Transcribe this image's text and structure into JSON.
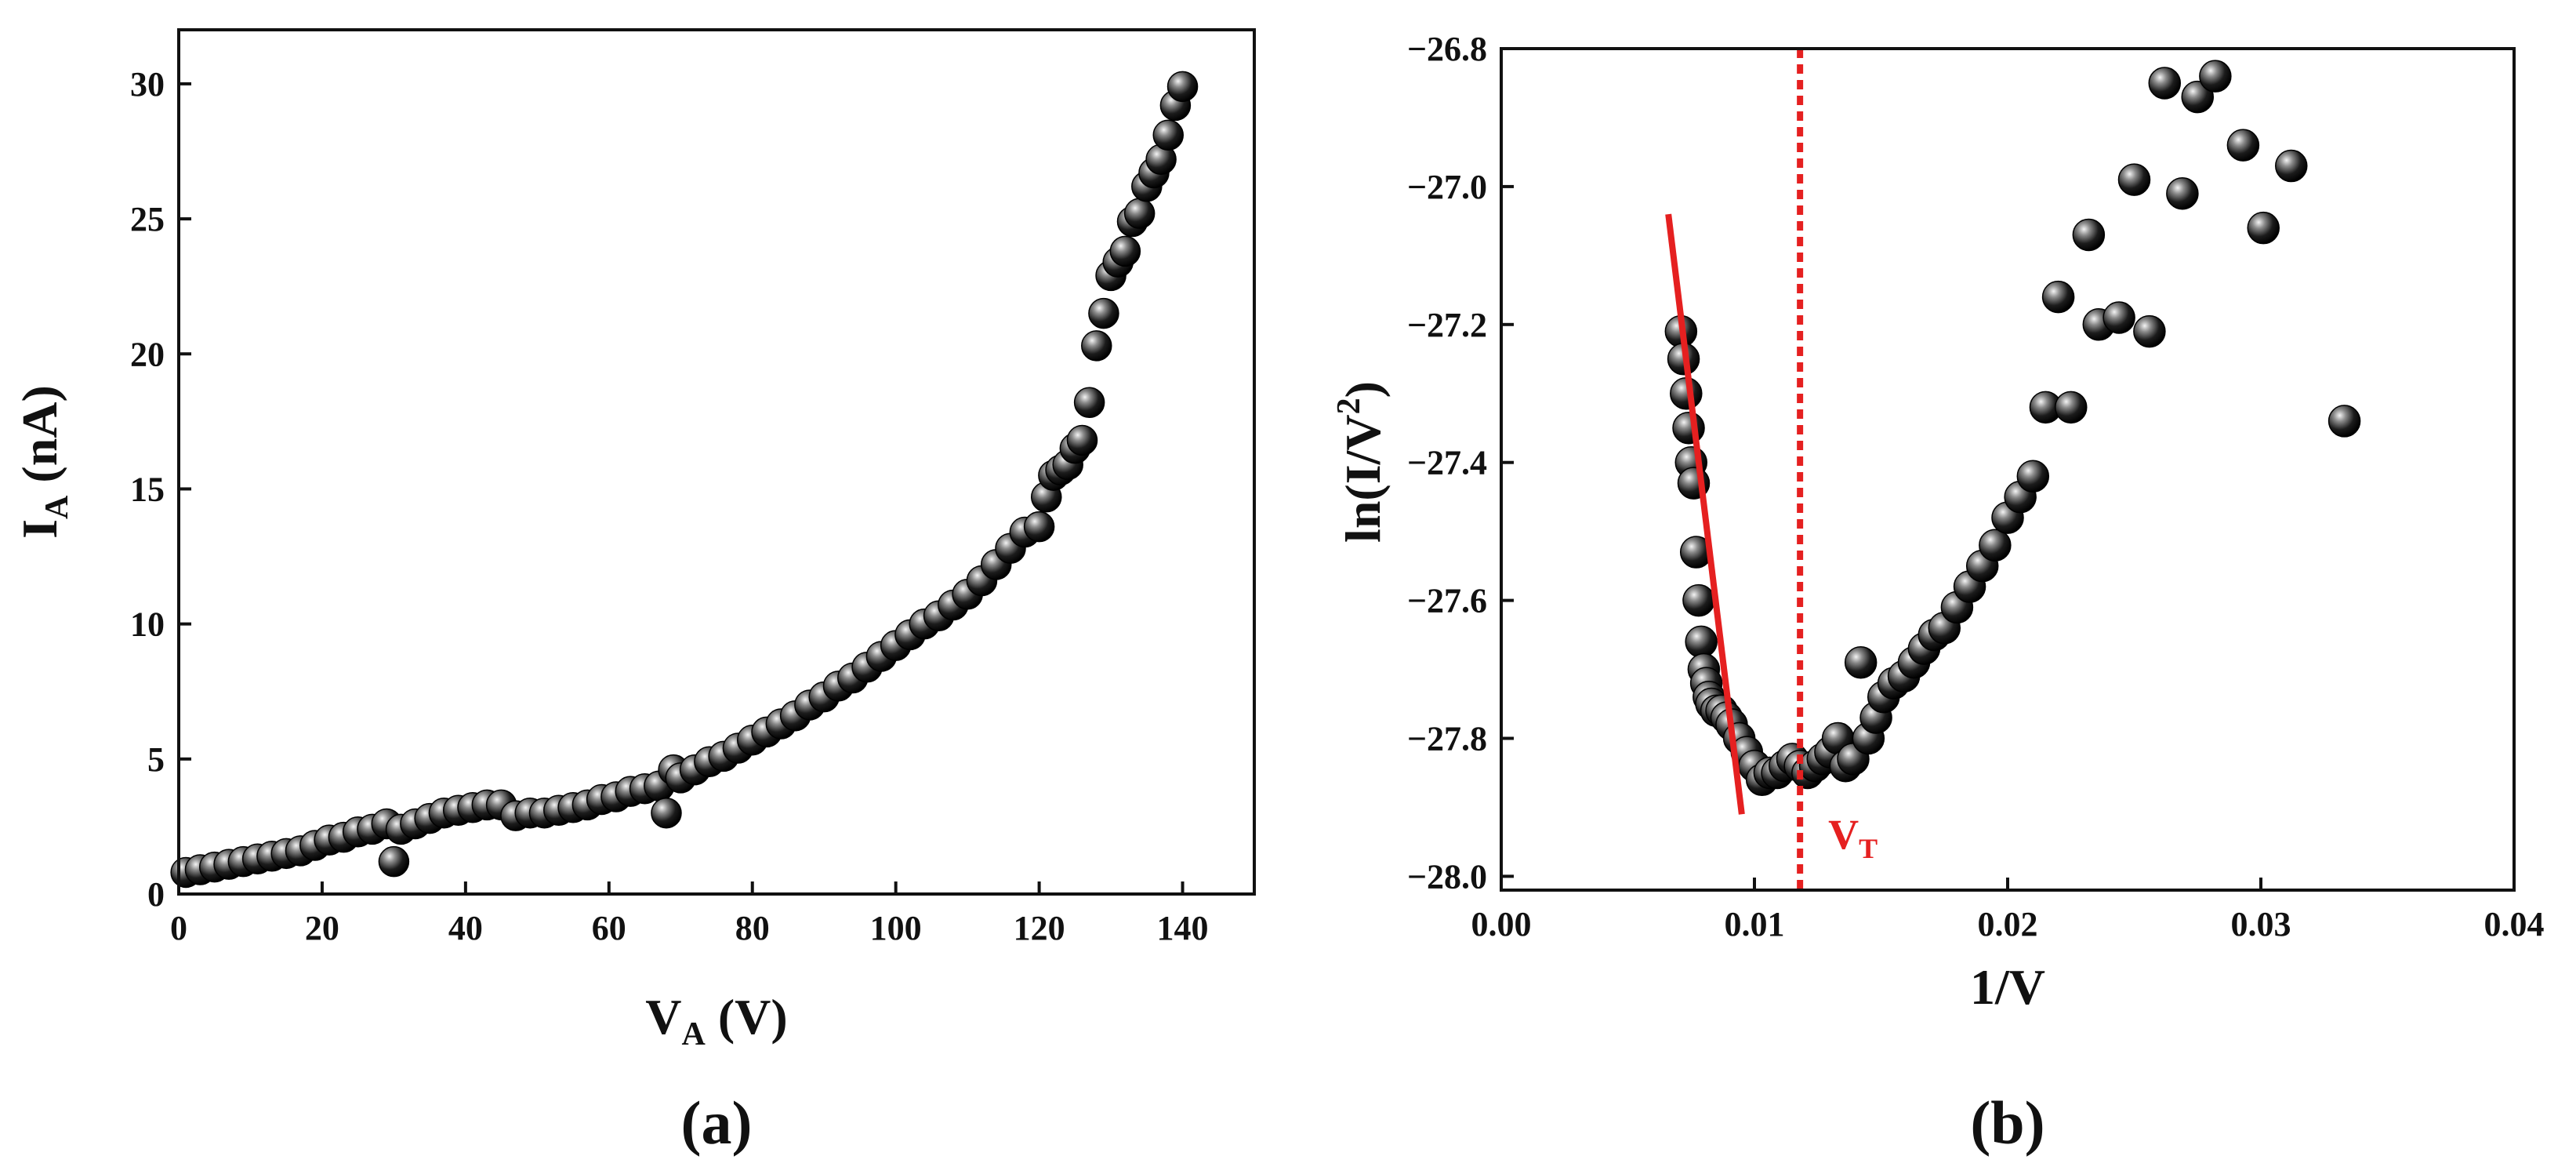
{
  "chart_data": [
    {
      "panel_label": "(a)",
      "type": "scatter",
      "xlabel_main": "V",
      "xlabel_sub": "A",
      "xlabel_unit": "(V)",
      "ylabel_main": "I",
      "ylabel_sub": "A",
      "ylabel_unit": "(nA)",
      "xlim": [
        0,
        150
      ],
      "ylim": [
        0,
        32
      ],
      "xticks": [
        0,
        20,
        40,
        60,
        80,
        100,
        120,
        140
      ],
      "yticks": [
        0,
        5,
        10,
        15,
        20,
        25,
        30
      ],
      "xtick_labels": [
        "0",
        "20",
        "40",
        "60",
        "80",
        "100",
        "120",
        "140"
      ],
      "ytick_labels": [
        "0",
        "5",
        "10",
        "15",
        "20",
        "25",
        "30"
      ],
      "series": [
        {
          "name": "I_A vs V_A",
          "x": [
            1,
            3,
            5,
            7,
            9,
            11,
            13,
            15,
            17,
            19,
            21,
            23,
            25,
            27,
            29,
            30,
            31,
            33,
            35,
            37,
            39,
            41,
            43,
            45,
            47,
            49,
            51,
            53,
            55,
            57,
            59,
            61,
            63,
            65,
            67,
            68,
            69,
            70,
            72,
            74,
            76,
            78,
            80,
            82,
            84,
            86,
            88,
            90,
            92,
            94,
            96,
            98,
            100,
            102,
            104,
            106,
            108,
            110,
            112,
            114,
            116,
            118,
            120,
            121,
            122,
            123,
            124,
            125,
            126,
            127,
            128,
            129,
            130,
            131,
            132,
            133,
            134,
            135,
            136,
            137,
            138,
            139,
            140
          ],
          "y": [
            0.8,
            0.9,
            1.0,
            1.1,
            1.2,
            1.3,
            1.4,
            1.5,
            1.6,
            1.8,
            2.0,
            2.1,
            2.3,
            2.4,
            2.6,
            1.2,
            2.4,
            2.6,
            2.8,
            3.0,
            3.1,
            3.2,
            3.3,
            3.3,
            2.9,
            3.0,
            3.0,
            3.1,
            3.2,
            3.3,
            3.5,
            3.6,
            3.8,
            3.9,
            4.0,
            3.0,
            4.6,
            4.3,
            4.6,
            4.9,
            5.1,
            5.4,
            5.7,
            6.0,
            6.3,
            6.6,
            7.0,
            7.3,
            7.7,
            8.0,
            8.4,
            8.8,
            9.2,
            9.6,
            10.0,
            10.3,
            10.7,
            11.1,
            11.6,
            12.2,
            12.8,
            13.4,
            13.6,
            14.7,
            15.5,
            15.7,
            15.9,
            16.5,
            16.8,
            18.2,
            20.3,
            21.5,
            22.9,
            23.4,
            23.8,
            24.9,
            25.2,
            26.2,
            26.7,
            27.2,
            28.1,
            29.2,
            29.9
          ]
        }
      ]
    },
    {
      "panel_label": "(b)",
      "type": "scatter",
      "xlabel": "1/V",
      "ylabel_main": "ln(I/V",
      "ylabel_sup": "2",
      "ylabel_end": ")",
      "xlim": [
        0.0,
        0.04
      ],
      "ylim": [
        -28.02,
        -26.8
      ],
      "xticks": [
        0.0,
        0.01,
        0.02,
        0.03,
        0.04
      ],
      "yticks": [
        -28.0,
        -27.8,
        -27.6,
        -27.4,
        -27.2,
        -27.0,
        -26.8
      ],
      "xtick_labels": [
        "0.00",
        "0.01",
        "0.02",
        "0.03",
        "0.04"
      ],
      "ytick_labels": [
        "−28.0",
        "−27.8",
        "−27.6",
        "−27.4",
        "−27.2",
        "−27.0",
        "−26.8"
      ],
      "series": [
        {
          "name": "ln(I/V^2) vs 1/V",
          "x": [
            0.0071,
            0.0072,
            0.0073,
            0.0074,
            0.0075,
            0.0076,
            0.0077,
            0.0078,
            0.0079,
            0.008,
            0.0081,
            0.0082,
            0.0083,
            0.0085,
            0.0087,
            0.0089,
            0.0091,
            0.0094,
            0.0097,
            0.01,
            0.0103,
            0.0106,
            0.0109,
            0.0112,
            0.0115,
            0.0118,
            0.0121,
            0.0124,
            0.0127,
            0.013,
            0.0133,
            0.0136,
            0.0139,
            0.0142,
            0.0145,
            0.0148,
            0.0151,
            0.0155,
            0.0159,
            0.0163,
            0.0167,
            0.0171,
            0.0175,
            0.018,
            0.0185,
            0.019,
            0.0195,
            0.02,
            0.0205,
            0.021,
            0.0215,
            0.022,
            0.0225,
            0.0232,
            0.0236,
            0.0244,
            0.025,
            0.0256,
            0.0262,
            0.0269,
            0.0275,
            0.0282,
            0.0293,
            0.0301,
            0.0312,
            0.0333
          ],
          "y": [
            -27.21,
            -27.25,
            -27.3,
            -27.35,
            -27.4,
            -27.43,
            -27.53,
            -27.6,
            -27.66,
            -27.7,
            -27.72,
            -27.74,
            -27.75,
            -27.76,
            -27.76,
            -27.77,
            -27.78,
            -27.8,
            -27.82,
            -27.84,
            -27.86,
            -27.85,
            -27.85,
            -27.84,
            -27.83,
            -27.84,
            -27.85,
            -27.84,
            -27.83,
            -27.82,
            -27.8,
            -27.84,
            -27.83,
            -27.69,
            -27.8,
            -27.77,
            -27.74,
            -27.72,
            -27.71,
            -27.69,
            -27.67,
            -27.65,
            -27.64,
            -27.61,
            -27.58,
            -27.55,
            -27.52,
            -27.48,
            -27.45,
            -27.42,
            -27.32,
            -27.16,
            -27.32,
            -27.07,
            -27.2,
            -27.19,
            -26.99,
            -27.21,
            -26.85,
            -27.01,
            -26.87,
            -26.84,
            -26.94,
            -27.06,
            -26.97,
            -27.34
          ]
        }
      ],
      "fit_line": {
        "x": [
          0.0066,
          0.0095
        ],
        "y": [
          -27.04,
          -27.91
        ],
        "color": "#e52020"
      },
      "threshold": {
        "x": 0.0118,
        "label_main": "V",
        "label_sub": "T",
        "color": "#e52020"
      }
    }
  ]
}
